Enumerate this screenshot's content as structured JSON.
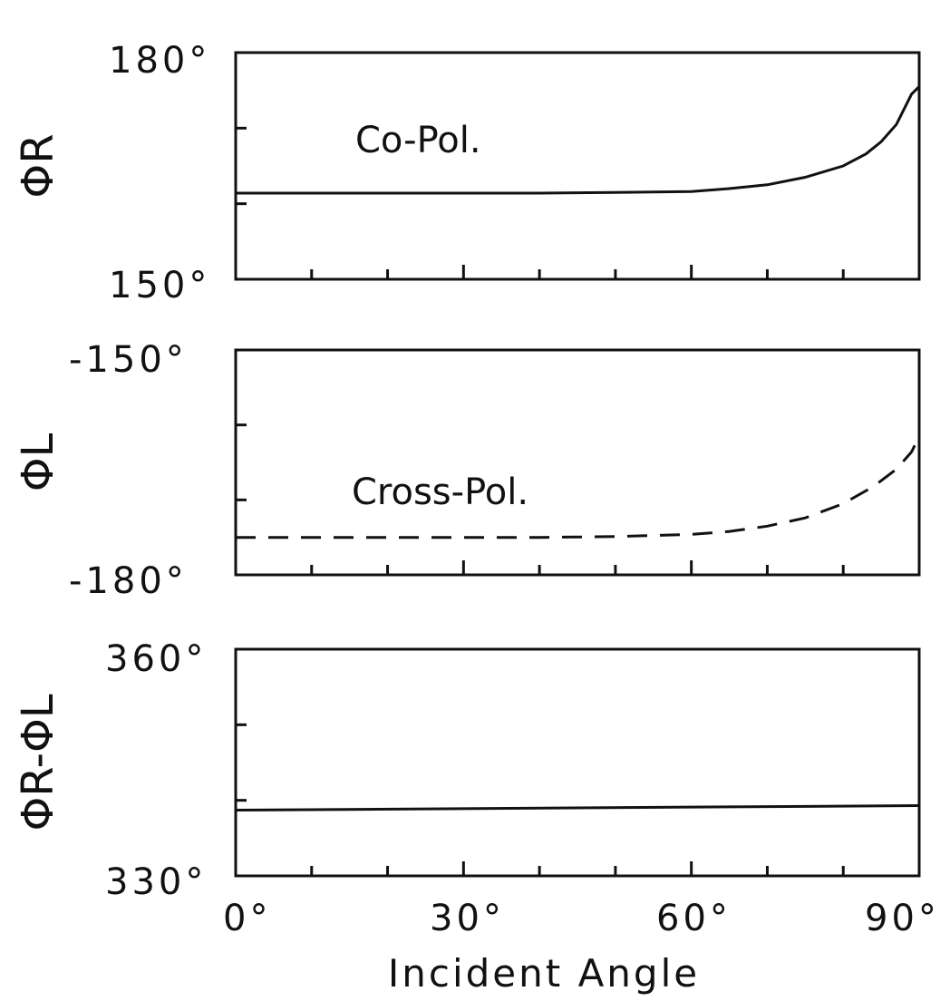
{
  "chart_data": [
    {
      "type": "line",
      "ylabel": "ΦR",
      "ylim": [
        150,
        180
      ],
      "xlim": [
        0,
        90
      ],
      "ytick_labels": [
        "180°",
        "150°"
      ],
      "annotation": "Co-Pol.",
      "series": [
        {
          "style": "solid",
          "x": [
            0,
            10,
            20,
            30,
            40,
            50,
            60,
            65,
            70,
            75,
            80,
            83,
            85,
            87,
            89,
            90
          ],
          "y": [
            161.4,
            161.4,
            161.4,
            161.4,
            161.4,
            161.5,
            161.6,
            162.0,
            162.5,
            163.5,
            165.0,
            166.6,
            168.2,
            170.5,
            174.5,
            175.5
          ]
        }
      ]
    },
    {
      "type": "line",
      "ylabel": "ΦL",
      "ylim": [
        -180,
        -150
      ],
      "xlim": [
        0,
        90
      ],
      "ytick_labels": [
        "-150°",
        "-180°"
      ],
      "annotation": "Cross-Pol.",
      "series": [
        {
          "style": "dashed",
          "x": [
            0,
            10,
            20,
            30,
            40,
            50,
            60,
            65,
            70,
            75,
            80,
            84,
            87,
            89,
            90
          ],
          "y": [
            -175.0,
            -175.0,
            -175.0,
            -175.0,
            -175.0,
            -174.9,
            -174.6,
            -174.2,
            -173.5,
            -172.4,
            -170.5,
            -168.2,
            -165.9,
            -163.6,
            -161.5
          ]
        }
      ]
    },
    {
      "type": "line",
      "ylabel": "ΦR-ΦL",
      "ylim": [
        330,
        360
      ],
      "xlim": [
        0,
        90
      ],
      "ytick_labels": [
        "360°",
        "330°"
      ],
      "x_tick_labels": [
        "0°",
        "30°",
        "60°",
        "90°"
      ],
      "xlabel": "Incident Angle",
      "series": [
        {
          "style": "solid",
          "x": [
            0,
            90
          ],
          "y": [
            338.7,
            339.3
          ]
        }
      ]
    }
  ]
}
